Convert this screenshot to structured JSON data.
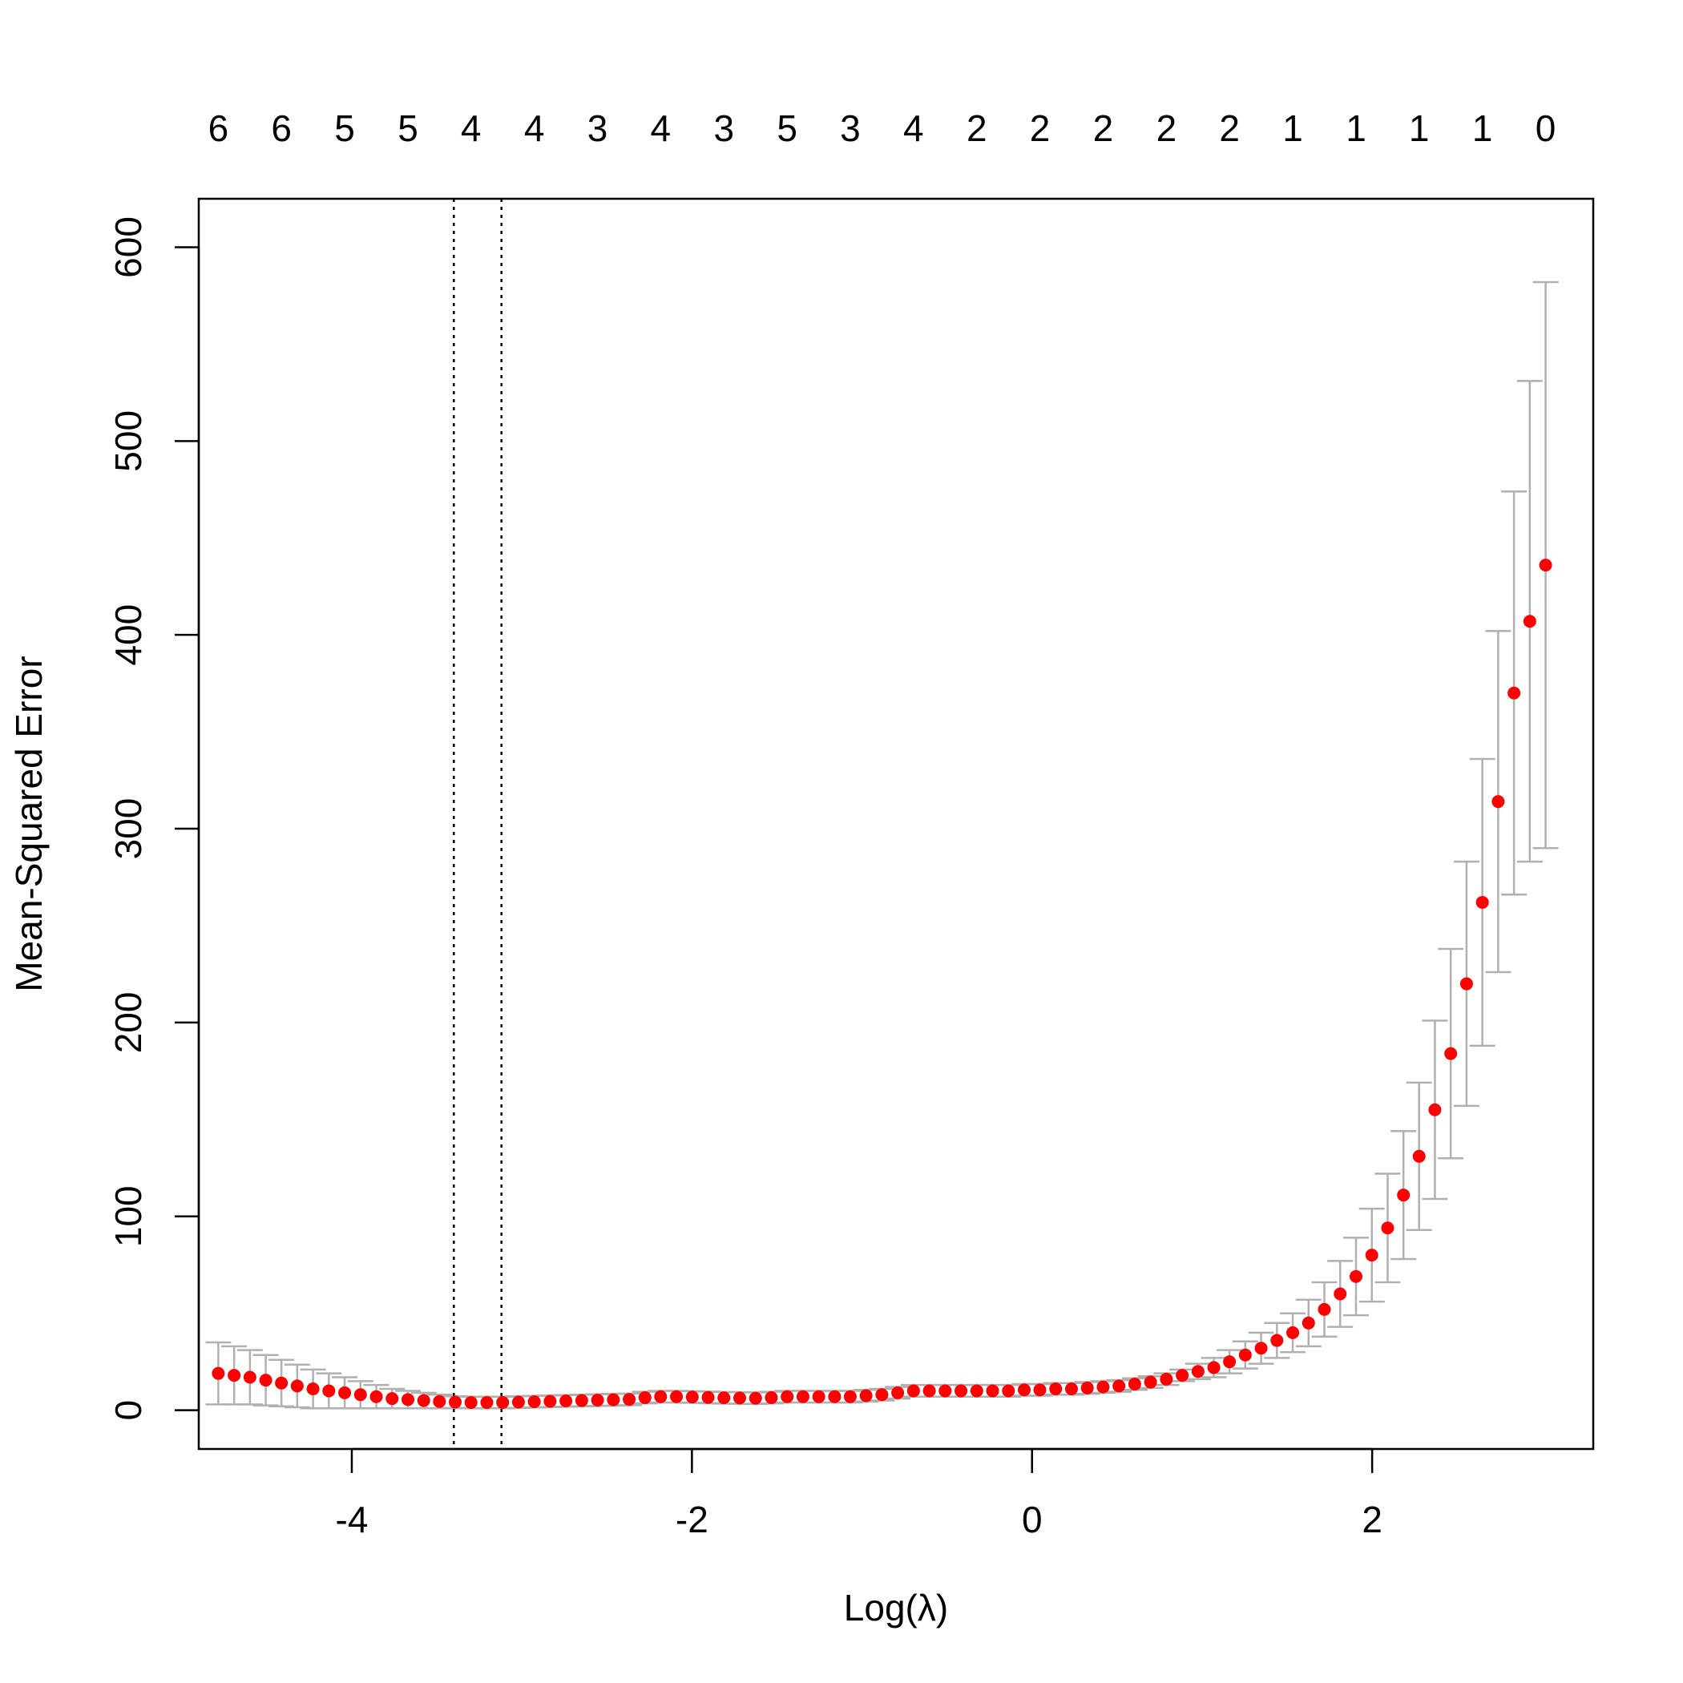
{
  "chart_data": {
    "type": "scatter",
    "xlabel": "Log(λ)",
    "ylabel": "Mean-Squared Error",
    "xlim": [
      -4.9,
      3.3
    ],
    "ylim": [
      -20,
      625
    ],
    "xticks": [
      -4,
      -2,
      0,
      2
    ],
    "xtick_labels": [
      "-4",
      "-2",
      "0",
      "2"
    ],
    "yticks": [
      0,
      100,
      200,
      300,
      400,
      500,
      600
    ],
    "ytick_labels": [
      "0",
      "100",
      "200",
      "300",
      "400",
      "500",
      "600"
    ],
    "top_axis": {
      "positions": [
        -4.785,
        -4.414,
        -4.042,
        -3.67,
        -3.299,
        -2.927,
        -2.555,
        -2.184,
        -1.812,
        -1.44,
        -1.069,
        -0.697,
        -0.325,
        0.046,
        0.418,
        0.79,
        1.161,
        1.533,
        1.905,
        2.276,
        2.648,
        3.02
      ],
      "labels": [
        "6",
        "6",
        "5",
        "5",
        "4",
        "4",
        "3",
        "4",
        "3",
        "5",
        "3",
        "4",
        "2",
        "2",
        "2",
        "2",
        "2",
        "1",
        "1",
        "1",
        "1",
        "0"
      ]
    },
    "vlines": [
      -3.4,
      -3.12
    ],
    "colors": {
      "point": "#ff0000",
      "errorbar": "#b0b0b0",
      "vline": "#000000"
    },
    "grid": false,
    "series": [
      {
        "x": [
          -4.785,
          -4.692,
          -4.599,
          -4.506,
          -4.414,
          -4.321,
          -4.228,
          -4.135,
          -4.042,
          -3.949,
          -3.856,
          -3.763,
          -3.67,
          -3.577,
          -3.485,
          -3.392,
          -3.299,
          -3.206,
          -3.113,
          -3.02,
          -2.927,
          -2.834,
          -2.741,
          -2.648,
          -2.555,
          -2.462,
          -2.369,
          -2.276,
          -2.184,
          -2.091,
          -1.998,
          -1.905,
          -1.812,
          -1.719,
          -1.626,
          -1.533,
          -1.44,
          -1.347,
          -1.254,
          -1.161,
          -1.069,
          -0.976,
          -0.883,
          -0.79,
          -0.697,
          -0.604,
          -0.511,
          -0.418,
          -0.325,
          -0.232,
          -0.139,
          -0.046,
          0.046,
          0.139,
          0.232,
          0.325,
          0.418,
          0.511,
          0.604,
          0.697,
          0.79,
          0.883,
          0.976,
          1.069,
          1.161,
          1.254,
          1.347,
          1.44,
          1.533,
          1.626,
          1.719,
          1.812,
          1.905,
          1.998,
          2.091,
          2.184,
          2.276,
          2.369,
          2.462,
          2.555,
          2.648,
          2.741,
          2.834,
          2.927,
          3.02
        ],
        "y": [
          19,
          18,
          17,
          15.5,
          14,
          12.5,
          11,
          10,
          9,
          8,
          7,
          6,
          5.5,
          5,
          4.5,
          4.2,
          4,
          4,
          4,
          4.2,
          4.4,
          4.6,
          4.8,
          5,
          5.2,
          5.4,
          5.6,
          6.5,
          7,
          7,
          6.8,
          6.6,
          6.4,
          6.3,
          6.2,
          6.5,
          7,
          7,
          7,
          7,
          7,
          7.5,
          8,
          9,
          10,
          10,
          10,
          10,
          10,
          10,
          10,
          10.5,
          10.5,
          11,
          11,
          11.5,
          12,
          12.5,
          13.5,
          14.5,
          16,
          18,
          20,
          22,
          25,
          28.5,
          32,
          36,
          40,
          45,
          52,
          60,
          69,
          80,
          94,
          111,
          131,
          155,
          184,
          220,
          262,
          314,
          370,
          407,
          436
        ],
        "yerr": [
          16,
          15,
          14,
          13,
          12,
          11,
          10,
          9,
          8,
          7,
          6,
          5,
          4.5,
          4,
          3.5,
          3,
          3,
          3,
          3,
          3,
          3,
          3,
          3,
          3,
          3,
          3,
          3,
          3,
          3,
          3,
          3,
          3,
          3,
          3,
          3,
          3,
          3,
          3,
          3,
          3,
          3,
          3,
          3,
          3,
          3,
          3,
          3,
          3,
          3,
          3,
          3,
          3,
          3,
          3,
          3,
          3,
          3,
          3,
          3,
          3,
          3,
          3,
          4,
          5,
          6,
          7,
          8,
          9,
          10,
          12,
          14,
          17,
          20,
          24,
          28,
          33,
          38,
          46,
          54,
          63,
          74,
          88,
          104,
          124,
          146
        ]
      }
    ]
  }
}
